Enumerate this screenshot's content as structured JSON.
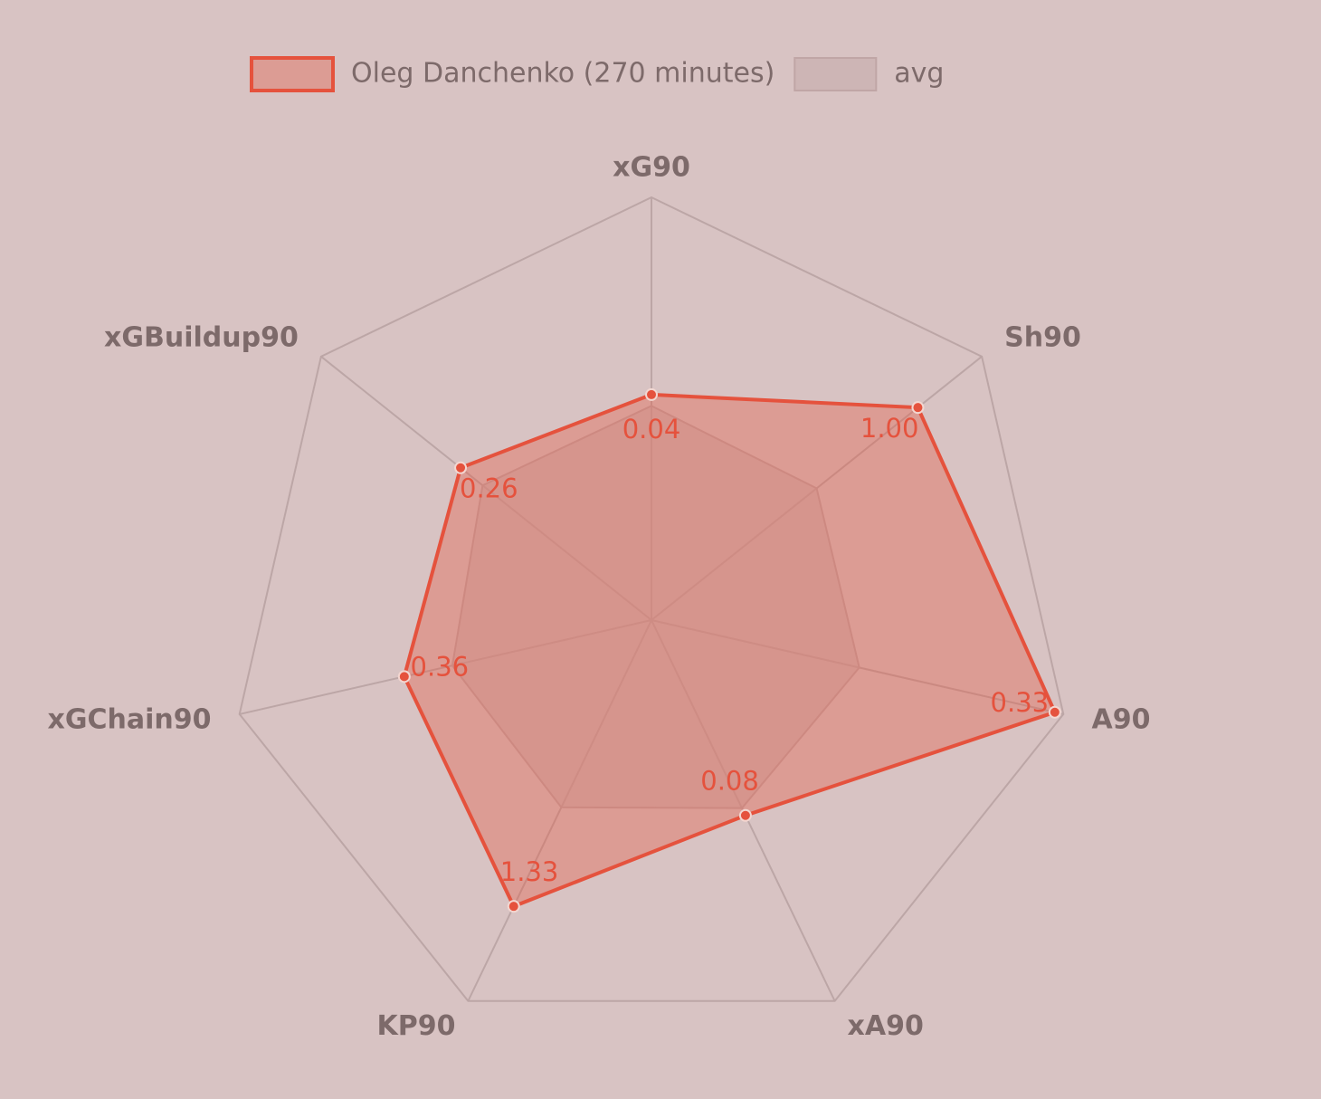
{
  "chart_data": {
    "type": "radar",
    "categories": [
      "xG90",
      "Sh90",
      "A90",
      "xA90",
      "KP90",
      "xGChain90",
      "xGBuildup90"
    ],
    "rlims": [
      [
        0,
        0.075
      ],
      [
        0,
        1.24
      ],
      [
        0,
        0.337
      ],
      [
        0,
        0.156
      ],
      [
        0,
        1.77
      ],
      [
        0,
        0.6
      ],
      [
        0,
        0.45
      ]
    ],
    "series": [
      {
        "name": "Oleg Danchenko (270 minutes)",
        "color": "#e5523d",
        "values": [
          0.04,
          1,
          0.33,
          0.08,
          1.33,
          0.36,
          0.26
        ],
        "value_labels": [
          "0.04",
          "1.00",
          "0.33",
          "0.08",
          "1.33",
          "0.36",
          "0.26"
        ]
      },
      {
        "name": "avg",
        "color": "#c7aeae",
        "values": [
          0.038,
          0.62,
          0.17,
          0.077,
          0.87,
          0.29,
          0.23
        ]
      }
    ],
    "legend": "top"
  }
}
